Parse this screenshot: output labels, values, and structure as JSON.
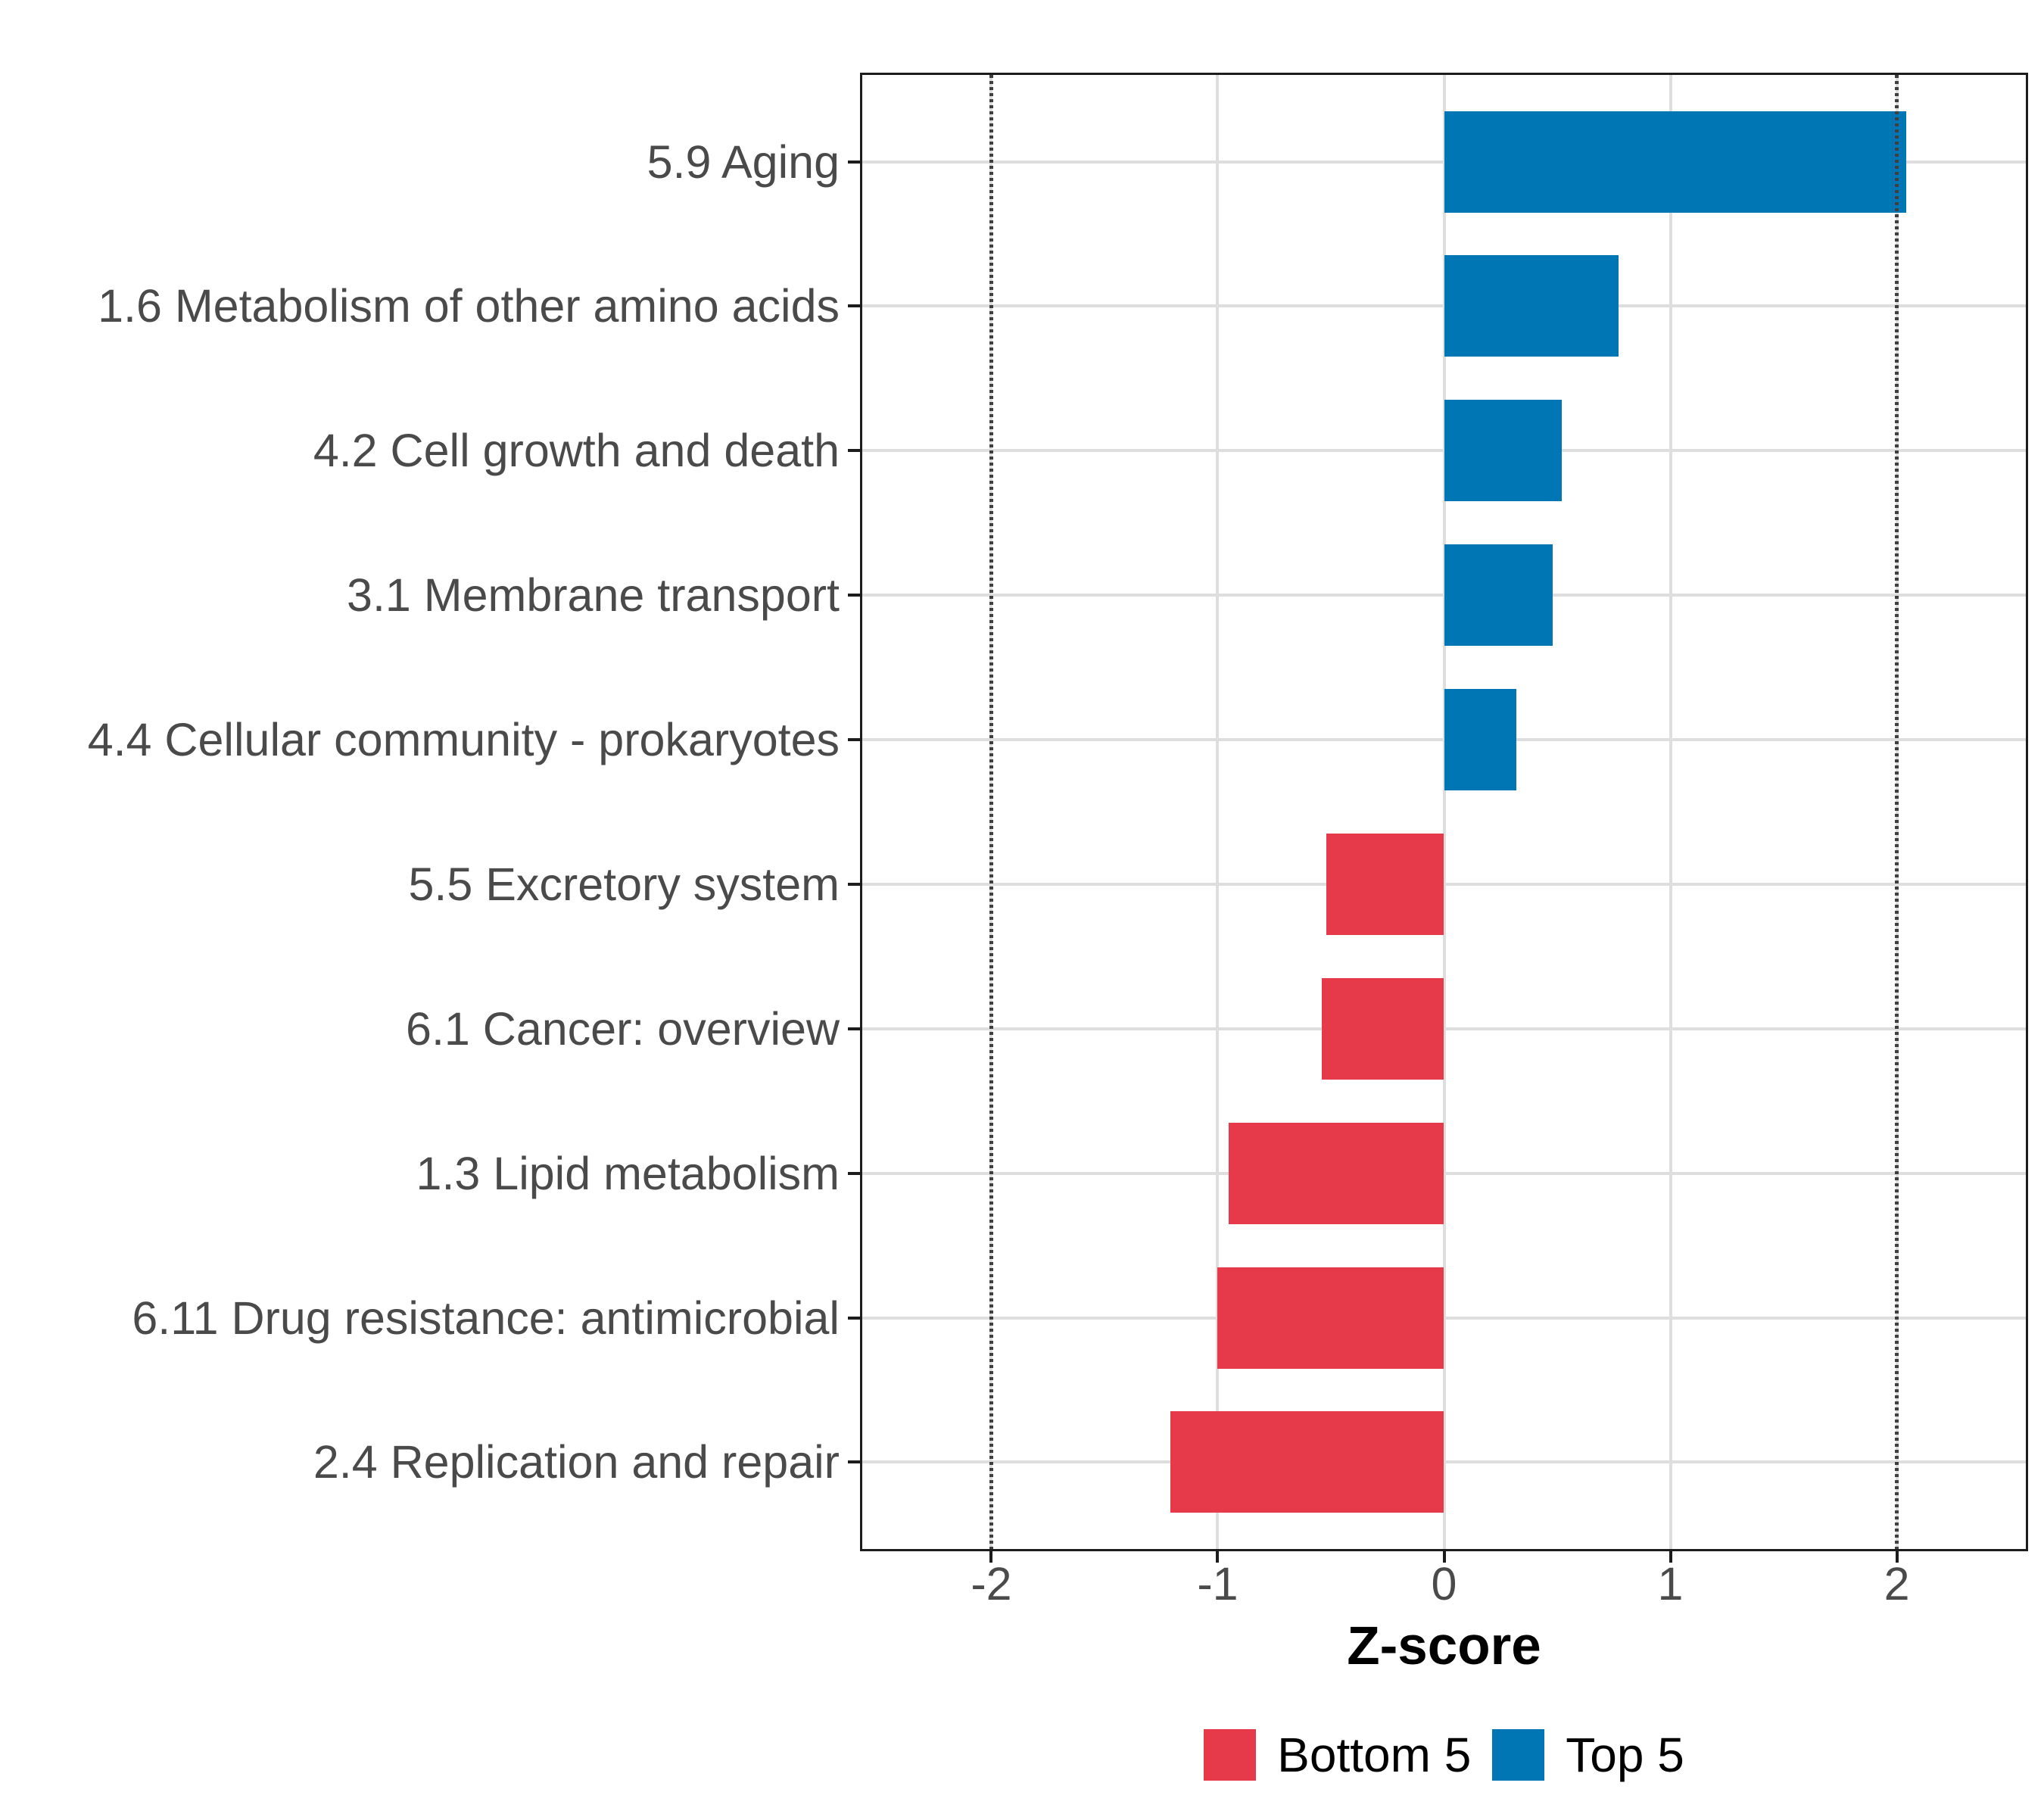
{
  "chart_data": {
    "type": "bar",
    "orientation": "horizontal",
    "title": "",
    "xlabel": "Z-score",
    "ylabel": "",
    "xlim": [
      -2.57,
      2.57
    ],
    "x_ticks": [
      "-2",
      "-1",
      "0",
      "1",
      "2"
    ],
    "x_tick_values": [
      -2,
      -1,
      0,
      1,
      2
    ],
    "grid": "major-only",
    "reference_lines": {
      "values": [
        -2,
        2
      ],
      "style": "dotted",
      "color": "#3f3f3f"
    },
    "bars": [
      {
        "label": "5.9 Aging",
        "value": 2.04,
        "group": "Top 5"
      },
      {
        "label": "1.6 Metabolism of other amino acids",
        "value": 0.77,
        "group": "Top 5"
      },
      {
        "label": "4.2 Cell growth and death",
        "value": 0.52,
        "group": "Top 5"
      },
      {
        "label": "3.1 Membrane transport",
        "value": 0.48,
        "group": "Top 5"
      },
      {
        "label": "4.4 Cellular community - prokaryotes",
        "value": 0.32,
        "group": "Top 5"
      },
      {
        "label": "5.5 Excretory system",
        "value": -0.52,
        "group": "Bottom 5"
      },
      {
        "label": "6.1 Cancer: overview",
        "value": -0.54,
        "group": "Bottom 5"
      },
      {
        "label": "1.3 Lipid metabolism",
        "value": -0.95,
        "group": "Bottom 5"
      },
      {
        "label": "6.11 Drug resistance: antimicrobial",
        "value": -1.0,
        "group": "Bottom 5"
      },
      {
        "label": "2.4 Replication and repair",
        "value": -1.21,
        "group": "Bottom 5"
      }
    ],
    "legend": {
      "position": "bottom",
      "entries": [
        {
          "label": "Bottom 5",
          "color": "#e6394a"
        },
        {
          "label": "Top 5",
          "color": "#0076b4"
        }
      ]
    },
    "colors": {
      "top5": "#0076b4",
      "bottom5": "#e6394a",
      "grid": "#dedede",
      "axis_text": "#4a4a4a",
      "panel_border": "#1c1c1c"
    }
  }
}
